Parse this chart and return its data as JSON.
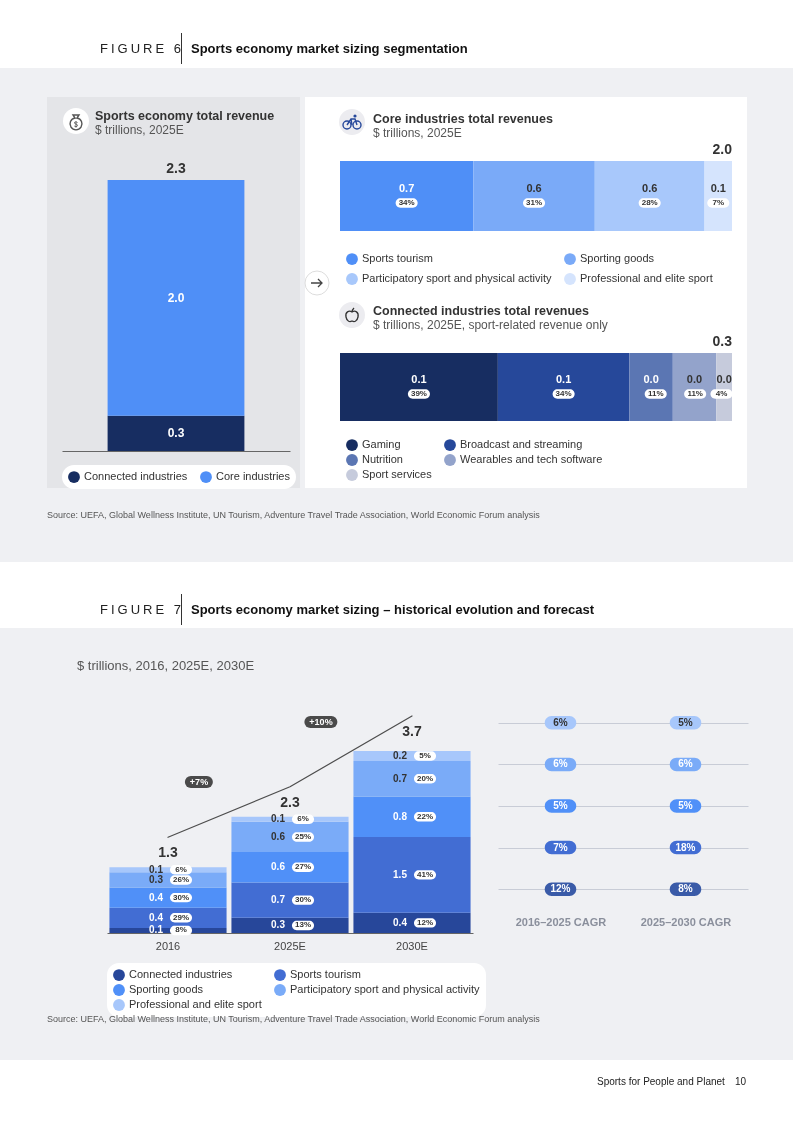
{
  "chart_data": [
    {
      "type": "bar",
      "title": "Sports economy total revenue",
      "subtitle": "$ trillions, 2025E",
      "categories": [
        null
      ],
      "stacked": true,
      "series": [
        {
          "name": "Connected industries",
          "color": "#172d61",
          "values": [
            0.3
          ],
          "value_labels": [
            "0.3"
          ]
        },
        {
          "name": "Core industries",
          "color": "#4f8ff7",
          "values": [
            2.0
          ],
          "value_labels": [
            "2.0"
          ]
        }
      ],
      "totals": [
        "2.3"
      ],
      "legend": "bottom",
      "tick_labels": false,
      "annotations": [
        "FIGURE 6",
        "Sports economy market sizing segmentation",
        "Source: UEFA, Global Wellness Institute, UN Tourism, Adventure Travel Trade Association, World Economic Forum analysis"
      ]
    },
    {
      "type": "bar",
      "orientation": "horizontal",
      "title": "Core industries total revenues",
      "subtitle": "$ trillions, 2025E",
      "categories": [
        null
      ],
      "stacked": true,
      "series": [
        {
          "name": "Sports tourism",
          "color": "#4f8ff7",
          "values": [
            0.68
          ],
          "value_labels": [
            "0.7"
          ]
        },
        {
          "name": "Sporting goods",
          "color": "#7aaaf8",
          "values": [
            0.62
          ],
          "value_labels": [
            "0.6"
          ]
        },
        {
          "name": "Participatory sport and physical activity",
          "color": "#a8c8fb",
          "values": [
            0.56
          ],
          "value_labels": [
            "0.6"
          ]
        },
        {
          "name": "Professional and elite sport",
          "color": "#d5e4fd",
          "values": [
            0.14
          ],
          "value_labels": [
            "0.1"
          ]
        }
      ],
      "totals": [
        "2.0"
      ],
      "legend": "bottom",
      "tick_labels": false,
      "annotations": [
        {
          "text": "34%",
          "x": 0.34
        },
        {
          "text": "31%",
          "x": 0.99
        },
        {
          "text": "28%",
          "x": 1.58
        },
        {
          "text": "7%",
          "x": 1.93
        }
      ]
    },
    {
      "type": "bar",
      "orientation": "horizontal",
      "title": "Connected industries total revenues",
      "subtitle": "$ trillions, 2025E, sport-related revenue only",
      "categories": [
        null
      ],
      "stacked": true,
      "series": [
        {
          "name": "Gaming",
          "color": "#172d61",
          "values": [
            0.12
          ],
          "value_labels": [
            "0.1"
          ]
        },
        {
          "name": "Broadcast and streaming",
          "color": "#26489a",
          "values": [
            0.1
          ],
          "value_labels": [
            "0.1"
          ]
        },
        {
          "name": "Nutrition",
          "color": "#5b76b3",
          "values": [
            0.033
          ],
          "value_labels": [
            "0.0"
          ]
        },
        {
          "name": "Wearables and tech software",
          "color": "#93a3cb",
          "values": [
            0.033
          ],
          "value_labels": [
            "0.0"
          ]
        },
        {
          "name": "Sport services",
          "color": "#c6cbdc",
          "values": [
            0.012
          ],
          "value_labels": [
            "0.0"
          ]
        }
      ],
      "totals": [
        "0.3"
      ],
      "legend": "bottom",
      "tick_labels": false,
      "annotations": [
        {
          "text": "39%",
          "x": 0.06
        },
        {
          "text": "34%",
          "x": 0.17
        },
        {
          "text": "11%",
          "x": 0.24
        },
        {
          "text": "11%",
          "x": 0.27
        },
        {
          "text": "4%",
          "x": 0.29
        }
      ]
    },
    {
      "type": "bar",
      "title": "$ trillions, 2016, 2025E, 2030E",
      "categories": [
        "2016",
        "2025E",
        "2030E"
      ],
      "stacked": true,
      "data_labels": true,
      "series": [
        {
          "name": "Connected industries",
          "color": "#27479a",
          "values": [
            0.1,
            0.3,
            0.4
          ]
        },
        {
          "name": "Sports tourism",
          "color": "#426dd3",
          "values": [
            0.4,
            0.7,
            1.5
          ]
        },
        {
          "name": "Sporting goods",
          "color": "#5090f8",
          "values": [
            0.4,
            0.6,
            0.8
          ]
        },
        {
          "name": "Participatory sport and physical activity",
          "color": "#7aabf8",
          "values": [
            0.3,
            0.6,
            0.7
          ]
        },
        {
          "name": "Professional and elite sport",
          "color": "#a7c7fb",
          "values": [
            0.1,
            0.1,
            0.2
          ]
        },
        {
          "type": "line",
          "axis": "y2",
          "color": "#4d4d4d",
          "values": [
            1.3,
            2.3,
            3.7
          ],
          "value_labels": [
            "1.3",
            "2.3",
            "3.7"
          ]
        }
      ],
      "legend": "bottom",
      "tick_labels": "x",
      "annotations": [
        "FIGURE 7",
        "Sports economy market sizing – historical evolution and forecast",
        "+7%",
        "+10%",
        "Source: UEFA, Global Wellness Institute, UN Tourism, Adventure Travel Trade Association, World Economic Forum analysis",
        "Sports for People and Planet",
        "10",
        "8%",
        "29%",
        "30%",
        "26%",
        "6%",
        "13%",
        "30%",
        "27%",
        "25%",
        "6%",
        "12%",
        "41%",
        "22%",
        "20%",
        "5%"
      ]
    },
    {
      "type": "other",
      "annotations": [
        "6%",
        "5%",
        "6%",
        "6%",
        "5%",
        "5%",
        "7%",
        "18%",
        "12%",
        "8%",
        "2016–2025 CAGR",
        "2025–2030 CAGR"
      ]
    }
  ]
}
